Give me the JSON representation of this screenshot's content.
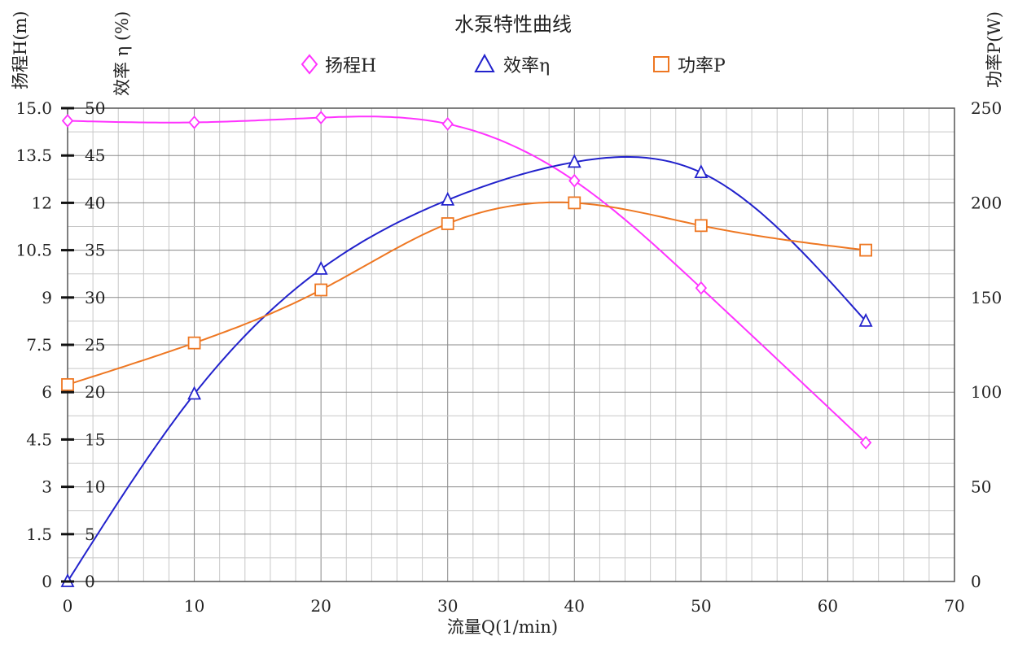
{
  "chart_data": {
    "type": "line",
    "title": "水泵特性曲线",
    "xlabel": "流量Q(1/min)",
    "ylabel_left_outer": "扬程H(m)",
    "ylabel_left_inner": "效率 η (%)",
    "ylabel_right": "功率P(W)",
    "xlim": [
      0,
      70
    ],
    "x_ticks": [
      "0",
      "10",
      "20",
      "30",
      "40",
      "50",
      "60",
      "70"
    ],
    "y_head_ticks": [
      "0",
      "1.5",
      "3",
      "4.5",
      "6",
      "7.5",
      "9",
      "10.5",
      "12",
      "13.5",
      "15.0"
    ],
    "y_eff_ticks": [
      "0",
      "5",
      "10",
      "15",
      "20",
      "25",
      "30",
      "35",
      "40",
      "45",
      "50"
    ],
    "y_power_ticks": [
      "0",
      "50",
      "100",
      "150",
      "200",
      "250"
    ],
    "grid": true,
    "legend_position": "top-center",
    "series": [
      {
        "name": "扬程H",
        "axis": "head",
        "ylim": [
          0,
          15
        ],
        "color": "#ff33ff",
        "marker": "diamond",
        "x": [
          0,
          10,
          20,
          30,
          40,
          50,
          63
        ],
        "y": [
          14.6,
          14.55,
          14.7,
          14.5,
          12.7,
          9.3,
          4.4
        ]
      },
      {
        "name": "效率η",
        "axis": "efficiency",
        "ylim": [
          0,
          50
        ],
        "color": "#2222cc",
        "marker": "triangle",
        "x": [
          0,
          10,
          20,
          30,
          40,
          50,
          63
        ],
        "y": [
          0,
          19.8,
          33,
          40.3,
          44.3,
          43.2,
          27.5
        ]
      },
      {
        "name": "功率P",
        "axis": "power",
        "ylim": [
          0,
          250
        ],
        "color": "#ee7722",
        "marker": "square",
        "x": [
          0,
          10,
          20,
          30,
          40,
          50,
          63
        ],
        "y": [
          104,
          126,
          154,
          189,
          200,
          188,
          175
        ]
      }
    ]
  }
}
